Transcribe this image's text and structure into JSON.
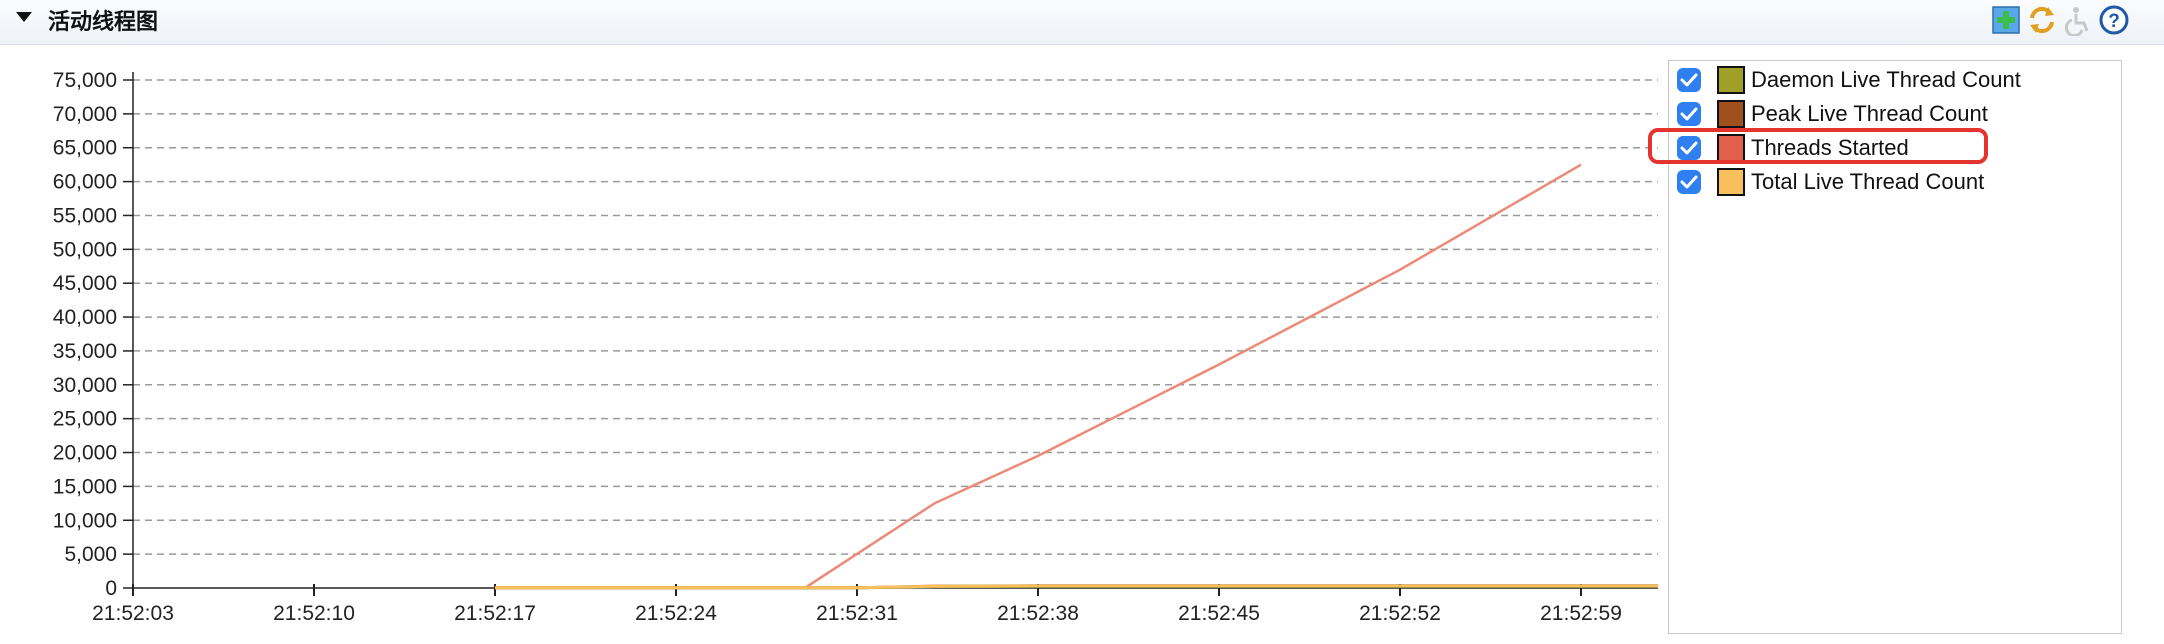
{
  "panel": {
    "title": "活动线程图"
  },
  "toolbar": {
    "icons": [
      "add-chart-icon",
      "refresh-icon",
      "accessibility-icon",
      "help-icon"
    ]
  },
  "legend": {
    "items": [
      {
        "label": "Daemon Live Thread Count",
        "color": "#a0a028",
        "checked": true
      },
      {
        "label": "Peak Live Thread Count",
        "color": "#a0501c",
        "checked": true
      },
      {
        "label": "Threads Started",
        "color": "#e0604a",
        "checked": true,
        "highlighted": true
      },
      {
        "label": "Total Live Thread Count",
        "color": "#f8c05c",
        "checked": true
      }
    ]
  },
  "chart_data": {
    "type": "line",
    "title": "",
    "xlabel": "",
    "ylabel": "",
    "ylim": [
      0,
      75000
    ],
    "yticks": [
      "0",
      "5,000",
      "10,000",
      "15,000",
      "20,000",
      "25,000",
      "30,000",
      "35,000",
      "40,000",
      "45,000",
      "50,000",
      "55,000",
      "60,000",
      "65,000",
      "70,000",
      "75,000"
    ],
    "xticks": [
      "21:52:03",
      "21:52:10",
      "21:52:17",
      "21:52:24",
      "21:52:31",
      "21:52:38",
      "21:52:45",
      "21:52:52",
      "21:52:59"
    ],
    "grid": true,
    "legend_position": "right",
    "series": [
      {
        "name": "Daemon Live Thread Count",
        "color": "#a0a028",
        "x": [
          "21:52:17",
          "21:52:24",
          "21:52:31",
          "21:52:34",
          "21:52:38",
          "21:52:45",
          "21:52:52",
          "21:52:59"
        ],
        "y": [
          20,
          20,
          20,
          200,
          250,
          250,
          250,
          250
        ]
      },
      {
        "name": "Peak Live Thread Count",
        "color": "#a0501c",
        "x": [
          "21:52:17",
          "21:52:24",
          "21:52:31",
          "21:52:34",
          "21:52:38",
          "21:52:45",
          "21:52:52",
          "21:52:59"
        ],
        "y": [
          30,
          30,
          30,
          280,
          320,
          320,
          320,
          320
        ]
      },
      {
        "name": "Threads Started",
        "color": "#ec8a78",
        "x": [
          "21:52:17",
          "21:52:24",
          "21:52:29",
          "21:52:34",
          "21:52:38",
          "21:52:45",
          "21:52:52",
          "21:52:59"
        ],
        "y": [
          30,
          30,
          40,
          12500,
          19500,
          33000,
          47000,
          62500
        ]
      },
      {
        "name": "Total Live Thread Count",
        "color": "#f8c05c",
        "x": [
          "21:52:17",
          "21:52:24",
          "21:52:31",
          "21:52:34",
          "21:52:38",
          "21:52:45",
          "21:52:52",
          "21:52:59"
        ],
        "y": [
          25,
          25,
          25,
          260,
          300,
          300,
          300,
          300
        ]
      }
    ]
  }
}
